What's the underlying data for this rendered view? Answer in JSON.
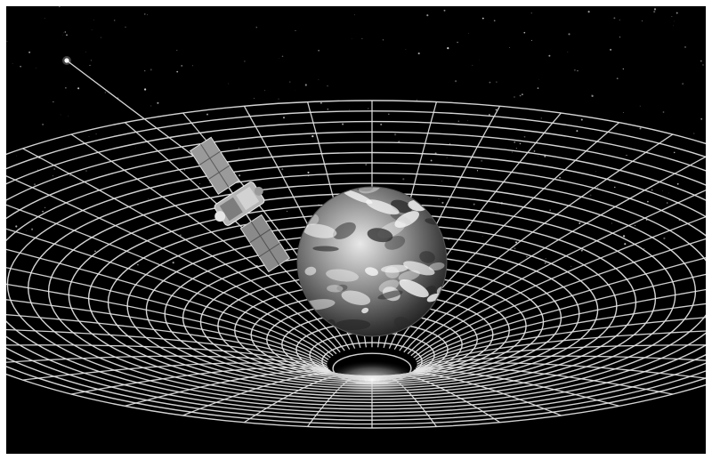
{
  "image": {
    "subject": "satellite-orbiting-earth-in-spacetime-grid",
    "style": "grayscale illustration",
    "colors": {
      "background": "#000000",
      "grid": "#e6e6e6",
      "frame": "#ffffff"
    },
    "elements": [
      "starfield",
      "spacetime-grid-well",
      "earth-globe",
      "satellite",
      "probe-beam",
      "beam-star"
    ]
  }
}
